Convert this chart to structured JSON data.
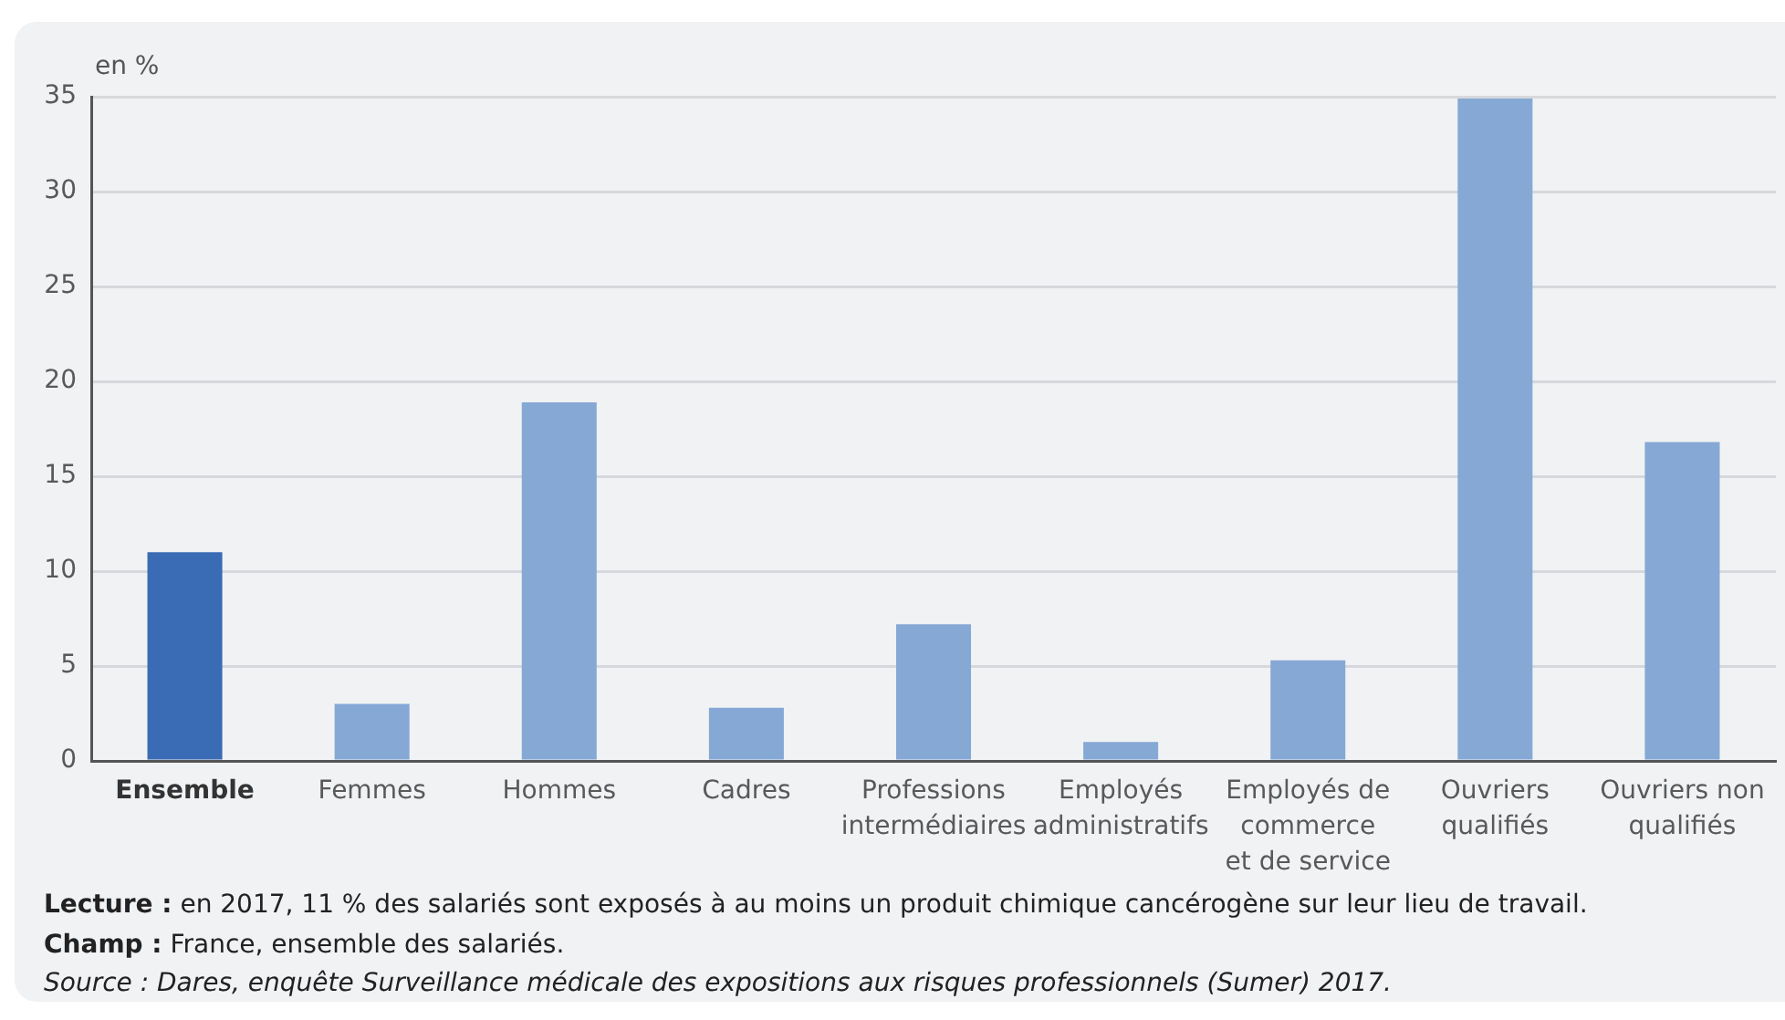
{
  "chart_data": {
    "type": "bar",
    "ylabel": "en %",
    "categories": [
      "Ensemble",
      "Femmes",
      "Hommes",
      "Cadres",
      "Professions intermédiaires",
      "Employés administratifs",
      "Employés de commerce et de service",
      "Ouvriers qualifiés",
      "Ouvriers non qualifiés"
    ],
    "values": [
      11,
      3,
      18.9,
      2.8,
      7.2,
      1,
      5.3,
      34.9,
      16.8
    ],
    "colors": [
      "#3a6bb5",
      "#86a8d5",
      "#86a8d5",
      "#86a8d5",
      "#86a8d5",
      "#86a8d5",
      "#86a8d5",
      "#86a8d5",
      "#86a8d5"
    ],
    "ylim": [
      0,
      35
    ],
    "yticks": [
      0,
      5,
      10,
      15,
      20,
      25,
      30,
      35
    ],
    "grid": "y",
    "annotations": [
      "Lecture : en 2017, 11 % des salariés sont exposés à au moins un produit chimique cancérogène sur leur lieu de travail.",
      "Champ : France, ensemble des salariés.",
      "Source : Dares, enquête Surveillance médicale des expositions aux risques professionnels (Sumer) 2017."
    ]
  }
}
